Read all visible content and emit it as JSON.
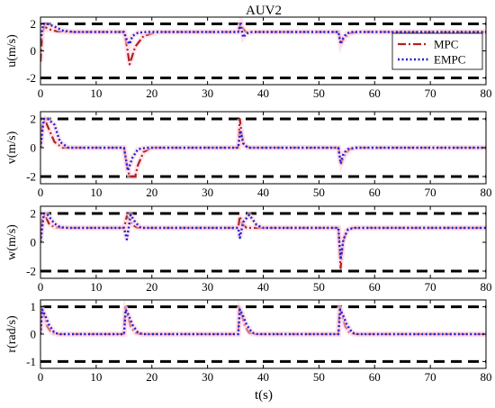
{
  "title": "AUV2",
  "xlabel": "t(s)",
  "legend": {
    "items": [
      "MPC",
      "EMPC"
    ]
  },
  "colors": {
    "mpc": "#b22222",
    "empc": "#1f1fd6",
    "bound": "#000000",
    "axis": "#000000",
    "shade": "#ffd6e3"
  },
  "chart_data": [
    {
      "type": "line",
      "title": "AUV2",
      "xlabel": "",
      "ylabel": "u(m/s)",
      "xlim": [
        0,
        80
      ],
      "ylim": [
        -2.5,
        2.5
      ],
      "xticks": [
        0,
        10,
        20,
        30,
        40,
        50,
        60,
        70,
        80
      ],
      "yticks": [
        -2,
        0,
        2
      ],
      "bounds": [
        2,
        -2
      ],
      "legend": "top-right",
      "series": [
        {
          "name": "MPC",
          "x": [
            0,
            0.3,
            0.7,
            1.5,
            3,
            5,
            15,
            15.5,
            16.0,
            16.3,
            17,
            18.5,
            21,
            35.5,
            36.0,
            36.3,
            36.8,
            38,
            40,
            53.5,
            54.0,
            54.5,
            55.5,
            57,
            80
          ],
          "y": [
            -0.8,
            1.2,
            1.8,
            1.6,
            1.45,
            1.4,
            1.4,
            0.4,
            -1.0,
            -0.6,
            0.3,
            1.1,
            1.4,
            1.4,
            2.1,
            1.7,
            1.4,
            1.4,
            1.4,
            1.4,
            0.6,
            0.9,
            1.3,
            1.4,
            1.4
          ]
        },
        {
          "name": "EMPC",
          "x": [
            0,
            0.5,
            1.2,
            2.5,
            4,
            6,
            15,
            15.5,
            16.0,
            16.5,
            17.5,
            19,
            35.5,
            35.9,
            36.4,
            37,
            38,
            53.5,
            53.9,
            54.4,
            55,
            56,
            80
          ],
          "y": [
            0.8,
            2.0,
            2.0,
            1.8,
            1.5,
            1.4,
            1.4,
            0.8,
            0.5,
            1.1,
            1.35,
            1.4,
            1.4,
            2.0,
            1.0,
            1.3,
            1.4,
            1.4,
            0.5,
            1.0,
            1.3,
            1.4,
            1.4
          ]
        }
      ]
    },
    {
      "type": "line",
      "title": "",
      "xlabel": "",
      "ylabel": "v(m/s)",
      "xlim": [
        0,
        80
      ],
      "ylim": [
        -2.5,
        2.5
      ],
      "xticks": [
        0,
        10,
        20,
        30,
        40,
        50,
        60,
        70,
        80
      ],
      "yticks": [
        -2,
        0,
        2
      ],
      "bounds": [
        2,
        -2
      ],
      "series": [
        {
          "name": "MPC",
          "x": [
            0,
            0.3,
            0.8,
            1.5,
            2.5,
            4,
            15,
            15.5,
            16.0,
            17.0,
            17.5,
            18.5,
            20,
            35.5,
            35.8,
            36.1,
            36.5,
            37.5,
            53.5,
            54.0,
            54.5,
            55.5,
            57,
            80
          ],
          "y": [
            0,
            1.6,
            1.9,
            1.3,
            0.4,
            0,
            0,
            -1.2,
            -2.0,
            -2.0,
            -1.2,
            -0.3,
            0,
            0,
            2.0,
            1.0,
            0.2,
            0,
            0,
            -1.1,
            -0.6,
            -0.1,
            0,
            0
          ]
        },
        {
          "name": "EMPC",
          "x": [
            0,
            0.6,
            1.3,
            2.5,
            3.5,
            5,
            15,
            15.7,
            16.5,
            17.5,
            19,
            35.5,
            35.9,
            36.4,
            37.2,
            53.5,
            53.9,
            54.4,
            55.2,
            56.5,
            80
          ],
          "y": [
            0,
            2.0,
            2.0,
            1.6,
            0.4,
            0,
            0,
            -1.6,
            -0.7,
            -0.1,
            0,
            0,
            1.2,
            0.3,
            0,
            0,
            -1.1,
            -0.4,
            -0.1,
            0,
            0
          ]
        }
      ]
    },
    {
      "type": "line",
      "title": "",
      "xlabel": "",
      "ylabel": "w(m/s)",
      "xlim": [
        0,
        80
      ],
      "ylim": [
        -2.5,
        2.5
      ],
      "xticks": [
        0,
        10,
        20,
        30,
        40,
        50,
        60,
        70,
        80
      ],
      "yticks": [
        -2,
        0,
        2
      ],
      "bounds": [
        2,
        -2
      ],
      "series": [
        {
          "name": "MPC",
          "x": [
            0,
            0.3,
            0.8,
            1.5,
            2.5,
            4,
            15,
            15.5,
            16.0,
            16.5,
            17.5,
            19,
            35.5,
            35.8,
            36.2,
            37,
            38,
            53.5,
            53.9,
            54.3,
            55,
            56,
            80
          ],
          "y": [
            0,
            1.6,
            1.9,
            1.3,
            1.05,
            1.0,
            1.0,
            1.8,
            1.6,
            1.2,
            1.0,
            1.0,
            1.0,
            1.8,
            1.3,
            1.0,
            1.0,
            1.0,
            -1.8,
            0.0,
            0.8,
            1.0,
            1.0
          ]
        },
        {
          "name": "EMPC",
          "x": [
            0,
            0.6,
            1.3,
            2.5,
            3.5,
            5,
            15,
            15.5,
            16.2,
            17,
            18,
            35.5,
            35.8,
            36.4,
            37.5,
            38.8,
            40,
            53.5,
            53.9,
            54.4,
            55.2,
            56.5,
            80
          ],
          "y": [
            0,
            2.0,
            1.9,
            1.3,
            1.05,
            1.0,
            1.0,
            0.2,
            1.9,
            1.4,
            1.0,
            1.0,
            0.3,
            1.4,
            1.9,
            1.2,
            1.0,
            1.0,
            -1.2,
            0.2,
            0.9,
            1.0,
            1.0
          ]
        }
      ]
    },
    {
      "type": "line",
      "title": "",
      "xlabel": "t(s)",
      "ylabel": "r(rad/s)",
      "xlim": [
        0,
        80
      ],
      "ylim": [
        -1.25,
        1.25
      ],
      "xticks": [
        0,
        10,
        20,
        30,
        40,
        50,
        60,
        70,
        80
      ],
      "yticks": [
        -1,
        0,
        1
      ],
      "bounds": [
        1,
        -1
      ],
      "series": [
        {
          "name": "MPC",
          "x": [
            0,
            0.2,
            0.6,
            1.2,
            2.0,
            3.0,
            15,
            15.2,
            15.6,
            16.2,
            17.0,
            18.0,
            35.5,
            35.7,
            36.1,
            36.7,
            37.5,
            38.5,
            53.5,
            53.7,
            54.1,
            54.7,
            55.5,
            56.5,
            80
          ],
          "y": [
            0,
            1.0,
            0.7,
            0.3,
            0.05,
            0,
            0,
            1.0,
            0.7,
            0.3,
            0.05,
            0,
            0,
            1.0,
            0.7,
            0.3,
            0.05,
            0,
            0,
            1.0,
            0.7,
            0.3,
            0.05,
            0,
            0
          ]
        },
        {
          "name": "EMPC",
          "x": [
            0,
            0.3,
            0.8,
            1.5,
            2.5,
            3.5,
            15,
            15.3,
            15.8,
            16.5,
            17.5,
            18.5,
            35.5,
            35.8,
            36.3,
            37.0,
            38.0,
            39.0,
            53.5,
            53.8,
            54.3,
            55.0,
            56.0,
            57.0,
            80
          ],
          "y": [
            0,
            0.9,
            0.7,
            0.35,
            0.05,
            0,
            0,
            0.9,
            0.7,
            0.35,
            0.05,
            0,
            0,
            0.9,
            0.7,
            0.35,
            0.05,
            0,
            0,
            0.9,
            0.7,
            0.35,
            0.05,
            0,
            0
          ]
        }
      ]
    }
  ]
}
